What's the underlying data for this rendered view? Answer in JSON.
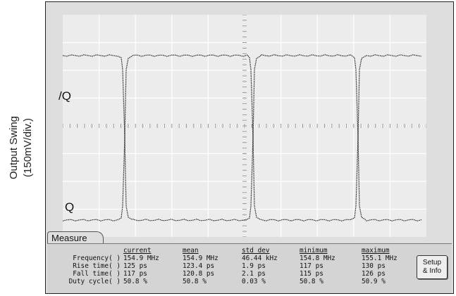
{
  "y_axis": {
    "label_line1": "Output Swing",
    "label_line2": "(150mV/div.)"
  },
  "traces": {
    "upper_label": "/Q",
    "lower_label": "Q"
  },
  "measure": {
    "tab_label": "Measure",
    "columns": [
      "current",
      "mean",
      "std dev",
      "minimum",
      "maximum"
    ],
    "rows": [
      {
        "label": "Frequency( )",
        "values": [
          "154.9 MHz",
          "154.9 MHz",
          "46.44 kHz",
          "154.8 MHz",
          "155.1 MHz"
        ]
      },
      {
        "label": "Rise time( )",
        "values": [
          "125 ps",
          "123.4 ps",
          "1.9 ps",
          "117 ps",
          "130 ps"
        ]
      },
      {
        "label": "Fall time( )",
        "values": [
          "117 ps",
          "120.8 ps",
          "2.1 ps",
          "115 ps",
          "126 ps"
        ]
      },
      {
        "label": "Duty cycle( )",
        "values": [
          "50.8 %",
          "50.8 %",
          "0.03 %",
          "50.8 %",
          "50.9 %"
        ]
      }
    ]
  },
  "setup_button": {
    "line1": "Setup",
    "line2": "& Info"
  },
  "colors": {
    "screen_bg": "#ececec",
    "grid": "#ffffff",
    "trace": "#222222"
  }
}
